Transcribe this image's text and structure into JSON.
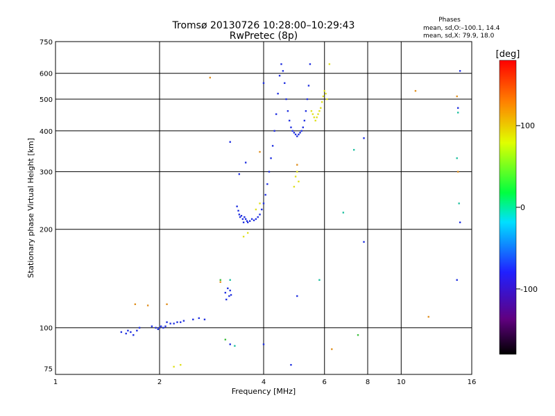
{
  "chart_data": {
    "type": "scatter",
    "title": "Tromsø 20130726 10:28:00–10:29:43",
    "subtitle": "RwPretec (8p)",
    "phases": {
      "title": "Phases",
      "line1": "mean, sd,O:–100.1, 14.4",
      "line2": "mean, sd,X:  79.9, 18.0"
    },
    "xlabel": "Frequency [MHz]",
    "ylabel": "Stationary phase Virtual Height [km]",
    "xscale": "log",
    "yscale": "log",
    "xlim": [
      1,
      16
    ],
    "ylim": [
      72,
      750
    ],
    "xticks": [
      1,
      2,
      4,
      6,
      8,
      10,
      16
    ],
    "xgrid": [
      2,
      4,
      6,
      8,
      10
    ],
    "yticks": [
      75,
      100,
      200,
      300,
      400,
      500,
      600,
      750
    ],
    "ygrid": [
      100,
      200,
      300,
      400,
      500,
      600
    ],
    "colorbar": {
      "label": "[deg]",
      "range": [
        -180,
        180
      ],
      "ticks": [
        100,
        0,
        -100
      ]
    },
    "series": [
      {
        "color": "#2030e0",
        "points": [
          [
            1.55,
            97
          ],
          [
            1.6,
            96
          ],
          [
            1.62,
            98
          ],
          [
            1.65,
            97
          ],
          [
            1.68,
            95
          ],
          [
            1.72,
            98
          ],
          [
            1.75,
            100
          ],
          [
            1.9,
            101
          ],
          [
            1.95,
            100
          ],
          [
            1.98,
            99
          ],
          [
            2.0,
            100
          ],
          [
            2.02,
            101
          ],
          [
            2.05,
            100
          ],
          [
            2.08,
            101
          ],
          [
            2.1,
            104
          ],
          [
            2.15,
            103
          ],
          [
            2.2,
            103
          ],
          [
            2.25,
            104
          ],
          [
            2.3,
            104
          ],
          [
            2.35,
            105
          ],
          [
            2.5,
            106
          ],
          [
            2.6,
            107
          ],
          [
            2.7,
            106
          ],
          [
            3.1,
            128
          ],
          [
            3.12,
            122
          ],
          [
            3.15,
            132
          ],
          [
            3.18,
            125
          ],
          [
            3.2,
            130
          ],
          [
            3.22,
            126
          ],
          [
            3.35,
            235
          ],
          [
            3.38,
            228
          ],
          [
            3.4,
            222
          ],
          [
            3.42,
            218
          ],
          [
            3.45,
            220
          ],
          [
            3.48,
            215
          ],
          [
            3.5,
            210
          ],
          [
            3.52,
            218
          ],
          [
            3.55,
            215
          ],
          [
            3.58,
            212
          ],
          [
            3.6,
            210
          ],
          [
            3.65,
            212
          ],
          [
            3.7,
            215
          ],
          [
            3.75,
            213
          ],
          [
            3.8,
            215
          ],
          [
            3.85,
            218
          ],
          [
            3.9,
            222
          ],
          [
            3.95,
            230
          ],
          [
            4.0,
            240
          ],
          [
            4.05,
            255
          ],
          [
            4.1,
            275
          ],
          [
            4.15,
            300
          ],
          [
            4.2,
            330
          ],
          [
            4.25,
            360
          ],
          [
            4.3,
            400
          ],
          [
            4.35,
            450
          ],
          [
            4.4,
            520
          ],
          [
            4.45,
            590
          ],
          [
            4.5,
            640
          ],
          [
            4.55,
            610
          ],
          [
            4.6,
            560
          ],
          [
            4.65,
            500
          ],
          [
            4.7,
            460
          ],
          [
            4.75,
            430
          ],
          [
            4.8,
            410
          ],
          [
            4.85,
            400
          ],
          [
            4.9,
            395
          ],
          [
            4.95,
            390
          ],
          [
            5.0,
            385
          ],
          [
            5.05,
            390
          ],
          [
            5.1,
            395
          ],
          [
            5.15,
            400
          ],
          [
            5.2,
            410
          ],
          [
            5.25,
            430
          ],
          [
            5.3,
            460
          ],
          [
            5.35,
            500
          ],
          [
            5.4,
            550
          ],
          [
            5.45,
            640
          ],
          [
            3.4,
            295
          ],
          [
            3.55,
            320
          ],
          [
            4.0,
            560
          ],
          [
            3.2,
            370
          ],
          [
            7.8,
            380
          ],
          [
            7.8,
            183
          ],
          [
            5.0,
            125
          ],
          [
            4.8,
            77
          ],
          [
            4.0,
            89
          ],
          [
            3.2,
            89
          ],
          [
            14.8,
            210
          ],
          [
            14.8,
            610
          ],
          [
            14.6,
            470
          ],
          [
            14.5,
            140
          ]
        ]
      },
      {
        "color": "#e0e020",
        "points": [
          [
            5.5,
            460
          ],
          [
            5.55,
            450
          ],
          [
            5.6,
            440
          ],
          [
            5.65,
            430
          ],
          [
            5.7,
            440
          ],
          [
            5.75,
            450
          ],
          [
            5.8,
            460
          ],
          [
            5.85,
            470
          ],
          [
            5.9,
            490
          ],
          [
            5.95,
            510
          ],
          [
            6.0,
            530
          ],
          [
            6.05,
            520
          ],
          [
            6.1,
            500
          ],
          [
            4.9,
            270
          ],
          [
            4.95,
            290
          ],
          [
            5.0,
            300
          ],
          [
            5.05,
            280
          ],
          [
            3.5,
            190
          ],
          [
            3.6,
            195
          ],
          [
            3.9,
            240
          ],
          [
            3.8,
            230
          ],
          [
            2.2,
            76
          ],
          [
            2.3,
            77
          ],
          [
            6.2,
            640
          ]
        ]
      },
      {
        "color": "#e09020",
        "points": [
          [
            2.8,
            582
          ],
          [
            1.7,
            118
          ],
          [
            1.85,
            117
          ],
          [
            2.1,
            118
          ],
          [
            3.0,
            138
          ],
          [
            3.9,
            345
          ],
          [
            5.0,
            315
          ],
          [
            6.3,
            86
          ],
          [
            12.0,
            108
          ],
          [
            11.0,
            530
          ],
          [
            14.6,
            300
          ],
          [
            14.5,
            510
          ]
        ]
      },
      {
        "color": "#20c0a0",
        "points": [
          [
            3.3,
            88
          ],
          [
            5.8,
            140
          ],
          [
            7.3,
            350
          ],
          [
            14.7,
            240
          ],
          [
            14.5,
            330
          ],
          [
            14.6,
            455
          ],
          [
            6.8,
            225
          ],
          [
            3.2,
            140
          ]
        ]
      },
      {
        "color": "#40c040",
        "points": [
          [
            3.1,
            92
          ],
          [
            3.0,
            140
          ],
          [
            7.5,
            95
          ]
        ]
      }
    ]
  }
}
